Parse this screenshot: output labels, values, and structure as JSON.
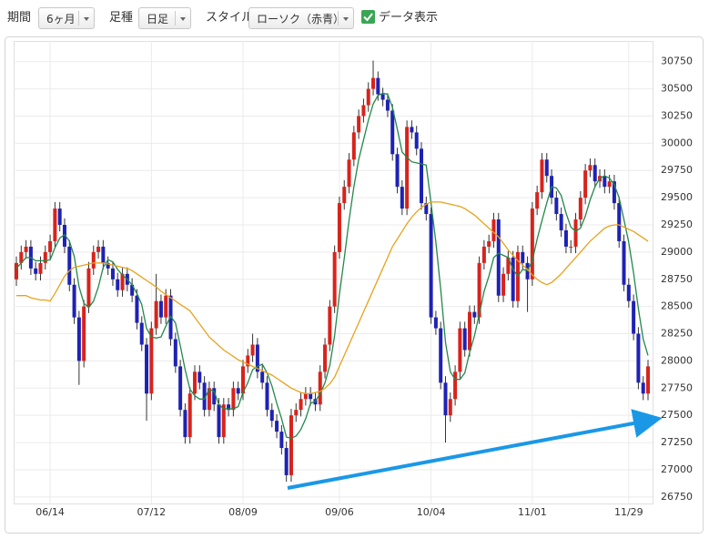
{
  "controls": {
    "period_label": "期間",
    "period": "6ヶ月",
    "bar_label": "足種",
    "bar": "日足",
    "style_label": "スタイル",
    "style": "ローソク（赤青）",
    "show_data": "データ表示"
  },
  "chart_data": {
    "type": "candlestick",
    "categories": [
      null,
      null,
      null,
      null,
      null,
      null,
      null,
      "06/14",
      null,
      null,
      null,
      null,
      null,
      null,
      null,
      null,
      null,
      null,
      null,
      null,
      null,
      null,
      null,
      null,
      null,
      null,
      null,
      null,
      "07/12",
      null,
      null,
      null,
      null,
      null,
      null,
      null,
      null,
      null,
      null,
      null,
      null,
      null,
      null,
      null,
      null,
      null,
      null,
      "08/09",
      null,
      null,
      null,
      null,
      null,
      null,
      null,
      null,
      null,
      null,
      null,
      null,
      null,
      null,
      null,
      null,
      null,
      null,
      null,
      "09/06",
      null,
      null,
      null,
      null,
      null,
      null,
      null,
      null,
      null,
      null,
      null,
      null,
      null,
      null,
      null,
      null,
      null,
      null,
      "10/04",
      null,
      null,
      null,
      null,
      null,
      null,
      null,
      null,
      null,
      null,
      null,
      null,
      null,
      null,
      null,
      null,
      null,
      null,
      null,
      null,
      "11/01",
      null,
      null,
      null,
      null,
      null,
      null,
      null,
      null,
      null,
      null,
      null,
      null,
      null,
      null,
      null,
      null,
      null,
      null,
      null,
      "11/29",
      null,
      null,
      null,
      null
    ],
    "open": [
      28750,
      28900,
      29000,
      29050,
      28850,
      28800,
      28900,
      29000,
      29100,
      29400,
      29250,
      29050,
      28700,
      28400,
      28000,
      28500,
      28850,
      29000,
      29050,
      28900,
      28850,
      28750,
      28650,
      28800,
      28700,
      28600,
      28350,
      28150,
      27700,
      28300,
      28550,
      28400,
      28600,
      28200,
      27950,
      27550,
      27300,
      27700,
      27900,
      27800,
      27550,
      27750,
      27600,
      27300,
      27600,
      27550,
      27750,
      27700,
      27950,
      28050,
      28150,
      27900,
      27800,
      27550,
      27450,
      27350,
      27200,
      26950,
      27500,
      27550,
      27650,
      27700,
      27650,
      27600,
      27900,
      28150,
      28500,
      29000,
      29450,
      29600,
      29850,
      30100,
      30250,
      30350,
      30500,
      30600,
      30450,
      30400,
      30300,
      29900,
      29600,
      29400,
      30150,
      30100,
      29950,
      29450,
      29350,
      28400,
      28300,
      27800,
      27500,
      27650,
      27900,
      28300,
      28100,
      28450,
      28400,
      28900,
      29050,
      29100,
      29300,
      28600,
      28800,
      28950,
      28550,
      29000,
      28900,
      28750,
      29400,
      29550,
      29850,
      29700,
      29500,
      29350,
      29200,
      29050,
      29050,
      29300,
      29500,
      29750,
      29800,
      29650,
      29700,
      29600,
      29650,
      29450,
      29100,
      28700,
      28550,
      28250,
      27800,
      27700
    ],
    "high": [
      28960,
      29060,
      29110,
      29110,
      28910,
      28960,
      29060,
      29160,
      29460,
      29460,
      29310,
      29110,
      28760,
      28460,
      28560,
      28910,
      29060,
      29110,
      29110,
      28960,
      28910,
      28810,
      28860,
      28860,
      28760,
      28660,
      28410,
      28210,
      28360,
      28800,
      28610,
      28660,
      28660,
      28260,
      28010,
      27610,
      27760,
      27960,
      27960,
      27860,
      27810,
      27810,
      27660,
      27660,
      27660,
      27810,
      27810,
      28010,
      28110,
      28250,
      28210,
      27960,
      27860,
      27610,
      27510,
      27410,
      27260,
      27560,
      27610,
      27710,
      27760,
      27760,
      27710,
      27960,
      28210,
      28560,
      29060,
      29510,
      29660,
      29910,
      30160,
      30310,
      30410,
      30560,
      30760,
      30660,
      30510,
      30460,
      30360,
      29960,
      29660,
      30210,
      30210,
      30160,
      30010,
      29510,
      29410,
      28460,
      28360,
      27860,
      27710,
      27960,
      28360,
      28360,
      28510,
      28510,
      28960,
      29110,
      29160,
      29360,
      29360,
      28860,
      29010,
      29010,
      29060,
      29060,
      28960,
      29460,
      29610,
      29910,
      29910,
      29760,
      29560,
      29410,
      29260,
      29110,
      29360,
      29560,
      29810,
      29860,
      29860,
      29760,
      29760,
      29710,
      29710,
      29510,
      29160,
      28760,
      28610,
      28310,
      27860,
      28010
    ],
    "low": [
      28690,
      28840,
      28940,
      28790,
      28740,
      28740,
      28840,
      28940,
      29040,
      29190,
      28990,
      28640,
      28340,
      27780,
      27940,
      28440,
      28790,
      28940,
      28840,
      28790,
      28690,
      28590,
      28590,
      28640,
      28540,
      28290,
      28090,
      27450,
      27640,
      28240,
      28340,
      28340,
      28140,
      27890,
      27490,
      27240,
      27240,
      27640,
      27740,
      27490,
      27490,
      27540,
      27240,
      27240,
      27490,
      27490,
      27640,
      27640,
      27890,
      27990,
      27840,
      27740,
      27490,
      27390,
      27290,
      27140,
      26890,
      26890,
      27440,
      27490,
      27590,
      27590,
      27540,
      27540,
      27840,
      28090,
      28440,
      28940,
      29390,
      29540,
      29790,
      30040,
      30190,
      30290,
      30440,
      30390,
      30340,
      30240,
      29840,
      29540,
      29340,
      29340,
      30040,
      29890,
      29390,
      29290,
      28340,
      28240,
      27740,
      27250,
      27440,
      27590,
      27840,
      28040,
      28040,
      28340,
      28340,
      28840,
      28990,
      29040,
      28540,
      28540,
      28740,
      28490,
      28490,
      28840,
      28450,
      28690,
      29340,
      29490,
      29640,
      29440,
      29290,
      29140,
      28990,
      28990,
      28990,
      29240,
      29440,
      29690,
      29590,
      29590,
      29540,
      29540,
      29390,
      29040,
      28640,
      28490,
      28190,
      27740,
      27640,
      27640
    ],
    "close": [
      28900,
      29000,
      29050,
      28850,
      28800,
      28900,
      29000,
      29100,
      29400,
      29250,
      29050,
      28700,
      28400,
      28000,
      28500,
      28850,
      29000,
      29050,
      28900,
      28850,
      28750,
      28650,
      28800,
      28700,
      28600,
      28350,
      28150,
      27700,
      28300,
      28550,
      28400,
      28600,
      28200,
      27950,
      27550,
      27300,
      27700,
      27900,
      27800,
      27550,
      27750,
      27600,
      27300,
      27600,
      27550,
      27750,
      27700,
      27950,
      28050,
      28150,
      27900,
      27800,
      27550,
      27450,
      27350,
      27200,
      26950,
      27500,
      27550,
      27650,
      27700,
      27650,
      27600,
      27900,
      28150,
      28500,
      29000,
      29450,
      29600,
      29850,
      30100,
      30250,
      30350,
      30500,
      30600,
      30450,
      30400,
      30300,
      29900,
      29600,
      29400,
      30150,
      30100,
      29950,
      29450,
      29350,
      28400,
      28300,
      27800,
      27500,
      27650,
      27900,
      28300,
      28100,
      28450,
      28400,
      28900,
      29050,
      29100,
      29300,
      28600,
      28800,
      28950,
      28550,
      29000,
      28900,
      28750,
      29400,
      29550,
      29850,
      29700,
      29500,
      29350,
      29200,
      29050,
      29050,
      29300,
      29500,
      29750,
      29800,
      29650,
      29700,
      29600,
      29650,
      29450,
      29100,
      28700,
      28550,
      28250,
      27800,
      27700,
      27950
    ],
    "up_color": "#d8231b",
    "down_color": "#1e22b4",
    "lines": [
      {
        "color": "#23884a",
        "values": [
          28850,
          28900,
          28950,
          28950,
          28920,
          28920,
          28920,
          28930,
          29040,
          29130,
          29160,
          29100,
          28960,
          28680,
          28530,
          28490,
          28550,
          28680,
          28860,
          28930,
          28910,
          28840,
          28790,
          28750,
          28700,
          28620,
          28520,
          28300,
          28220,
          28210,
          28220,
          28320,
          28410,
          28350,
          28140,
          27920,
          27740,
          27680,
          27650,
          27650,
          27740,
          27720,
          27600,
          27560,
          27560,
          27560,
          27580,
          27710,
          27800,
          27920,
          27950,
          27970,
          27890,
          27770,
          27610,
          27470,
          27300,
          27290,
          27310,
          27370,
          27470,
          27610,
          27630,
          27700,
          27800,
          27960,
          28230,
          28610,
          28940,
          29290,
          29600,
          29850,
          30030,
          30210,
          30360,
          30440,
          30460,
          30450,
          30330,
          30130,
          29920,
          29870,
          29830,
          29820,
          29810,
          29800,
          29450,
          29090,
          28660,
          28170,
          27900,
          27830,
          27830,
          27890,
          28080,
          28230,
          28430,
          28640,
          28780,
          28950,
          28990,
          28970,
          28950,
          28840,
          28780,
          28840,
          28830,
          28920,
          29120,
          29290,
          29450,
          29600,
          29590,
          29520,
          29360,
          29230,
          29190,
          29220,
          29330,
          29480,
          29600,
          29680,
          29700,
          29680,
          29620,
          29500,
          29300,
          29090,
          28810,
          28480,
          28200,
          28050
        ]
      },
      {
        "color": "#e8a21c",
        "values": [
          28600,
          28600,
          28600,
          28580,
          28570,
          28560,
          28560,
          28550,
          28620,
          28700,
          28780,
          28830,
          28860,
          28870,
          28880,
          28890,
          28900,
          28900,
          28900,
          28890,
          28880,
          28870,
          28860,
          28850,
          28830,
          28800,
          28770,
          28740,
          28710,
          28680,
          28640,
          28610,
          28580,
          28550,
          28520,
          28490,
          28460,
          28400,
          28340,
          28280,
          28220,
          28180,
          28140,
          28100,
          28070,
          28040,
          28010,
          27990,
          27970,
          27950,
          27930,
          27910,
          27890,
          27870,
          27840,
          27810,
          27780,
          27750,
          27730,
          27710,
          27700,
          27700,
          27710,
          27720,
          27750,
          27790,
          27850,
          27950,
          28050,
          28150,
          28250,
          28350,
          28450,
          28550,
          28650,
          28750,
          28850,
          28950,
          29050,
          29120,
          29190,
          29260,
          29320,
          29370,
          29410,
          29440,
          29460,
          29460,
          29460,
          29450,
          29440,
          29430,
          29420,
          29400,
          29370,
          29340,
          29300,
          29260,
          29220,
          29180,
          29140,
          29080,
          29020,
          28970,
          28920,
          28880,
          28840,
          28790,
          28750,
          28720,
          28700,
          28720,
          28760,
          28800,
          28850,
          28900,
          28950,
          29000,
          29050,
          29100,
          29140,
          29180,
          29220,
          29240,
          29250,
          29250,
          29230,
          29210,
          29190,
          29160,
          29130,
          29100
        ]
      }
    ],
    "ylim": [
      26690,
      30940
    ],
    "yticks": [
      26750,
      27000,
      27250,
      27500,
      27750,
      28000,
      28250,
      28500,
      28750,
      29000,
      29250,
      29500,
      29750,
      30000,
      30250,
      30500,
      30750
    ],
    "grid": true
  }
}
